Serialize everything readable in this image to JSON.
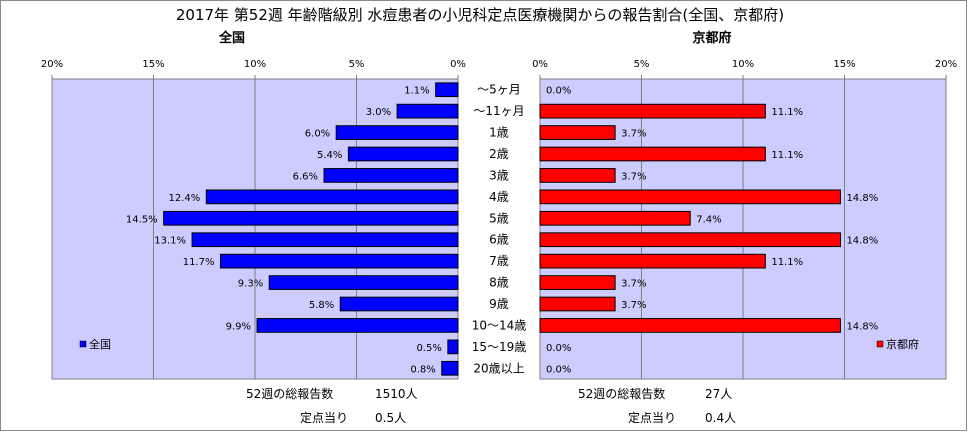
{
  "title": "2017年 第52週 年齢階級別 水痘患者の小児科定点医療機関からの報告割合(全国、京都府)",
  "colors": {
    "national_bar": "#0000FF",
    "kyoto_bar": "#FF0000",
    "plot_bg": "#CCCCFF"
  },
  "chart_data": [
    {
      "type": "bar",
      "orientation": "horizontal",
      "direction": "right-to-left",
      "subtitle": "全国",
      "legend": "全国",
      "legend_position": "bottom-left",
      "xlim": [
        0,
        20
      ],
      "xticks": [
        "20%",
        "15%",
        "10%",
        "5%",
        "0%"
      ],
      "grid": true,
      "values": [
        1.1,
        3.0,
        6.0,
        5.4,
        6.6,
        12.4,
        14.5,
        13.1,
        11.7,
        9.3,
        5.8,
        9.9,
        0.5,
        0.8
      ],
      "labels": [
        "1.1%",
        "3.0%",
        "6.0%",
        "5.4%",
        "6.6%",
        "12.4%",
        "14.5%",
        "13.1%",
        "11.7%",
        "9.3%",
        "5.8%",
        "9.9%",
        "0.5%",
        "0.8%"
      ]
    },
    {
      "type": "bar",
      "orientation": "horizontal",
      "direction": "left-to-right",
      "subtitle": "京都府",
      "legend": "京都府",
      "legend_position": "bottom-right",
      "xlim": [
        0,
        20
      ],
      "xticks": [
        "0%",
        "5%",
        "10%",
        "15%",
        "20%"
      ],
      "grid": true,
      "values": [
        0.0,
        11.1,
        3.7,
        11.1,
        3.7,
        14.8,
        7.4,
        14.8,
        11.1,
        3.7,
        3.7,
        14.8,
        0.0,
        0.0
      ],
      "labels": [
        "0.0%",
        "11.1%",
        "3.7%",
        "11.1%",
        "3.7%",
        "14.8%",
        "7.4%",
        "14.8%",
        "11.1%",
        "3.7%",
        "3.7%",
        "14.8%",
        "0.0%",
        "0.0%"
      ]
    }
  ],
  "categories": [
    "～5ヶ月",
    "～11ヶ月",
    "1歳",
    "2歳",
    "3歳",
    "4歳",
    "5歳",
    "6歳",
    "7歳",
    "8歳",
    "9歳",
    "10～14歳",
    "15～19歳",
    "20歳以上"
  ],
  "footer": {
    "national": {
      "total_label": "52週の総報告数",
      "total_value": "1510人",
      "per_label": "定点当り",
      "per_value": "0.5人"
    },
    "kyoto": {
      "total_label": "52週の総報告数",
      "total_value": "27人",
      "per_label": "定点当り",
      "per_value": "0.4人"
    }
  }
}
